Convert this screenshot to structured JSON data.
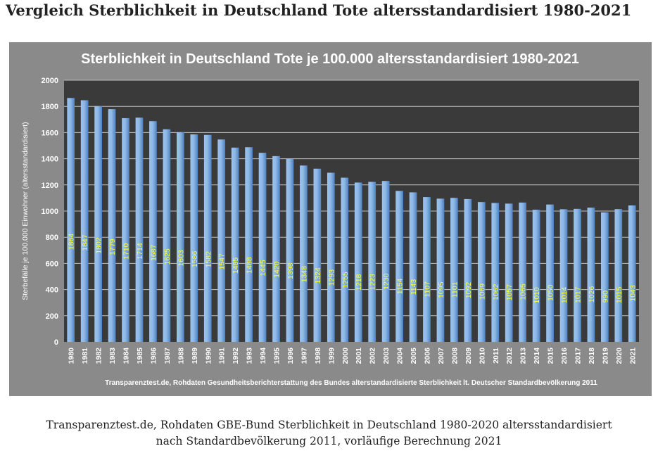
{
  "page": {
    "heading": "Vergleich Sterblichkeit in Deutschland Tote altersstandardisiert 1980-2021",
    "caption_line1": "Transparenztest.de, Rohdaten GBE-Bund Sterblichkeit in Deutschland 1980-2020 altersstandardisiert",
    "caption_line2": "nach Standardbevölkerung 2011, vorläufige Berechnung 2021"
  },
  "chart_data": {
    "type": "bar",
    "title": "Sterblichkeit in Deutschland Tote je 100.000 altersstandardisiert 1980-2021",
    "ylabel": "Sterbefälle je 100.000 Einwohner (altersstandardisiert)",
    "xlabel": "",
    "source_note": "Transparenztest.de, Rohdaten Gesundheitsberichterstattung des Bundes alterstandardisierte Sterblichkeit lt. Deutscher Standardbevölkerung 2011",
    "ylim": [
      0,
      2000
    ],
    "yticks": [
      0,
      200,
      400,
      600,
      800,
      1000,
      1200,
      1400,
      1600,
      1800,
      2000
    ],
    "grid": true,
    "categories": [
      "1980",
      "1981",
      "1982",
      "1983",
      "1984",
      "1985",
      "1986",
      "1987",
      "1988",
      "1989",
      "1990",
      "1991",
      "1992",
      "1993",
      "1994",
      "1995",
      "1996",
      "1997",
      "1998",
      "1999",
      "2000",
      "2001",
      "2002",
      "2003",
      "2004",
      "2005",
      "2006",
      "2007",
      "2008",
      "2009",
      "2010",
      "2011",
      "2012",
      "2013",
      "2014",
      "2015",
      "2016",
      "2017",
      "2018",
      "2019",
      "2020",
      "2021"
    ],
    "values": [
      1864,
      1847,
      1802,
      1779,
      1710,
      1714,
      1687,
      1625,
      1603,
      1586,
      1582,
      1547,
      1485,
      1488,
      1445,
      1420,
      1398,
      1348,
      1324,
      1293,
      1255,
      1218,
      1223,
      1230,
      1154,
      1143,
      1107,
      1095,
      1101,
      1092,
      1069,
      1062,
      1057,
      1065,
      1010,
      1050,
      1014,
      1017,
      1026,
      990,
      1015,
      1043
    ],
    "colors": {
      "frame": "#8a8a8a",
      "plot_background": "#3a3a3a",
      "gridline": "#c0c0c0",
      "bar_fill": "#8fb8e6",
      "bar_shade": "#4e82c4",
      "value_label": "#ffff33",
      "axis_text": "#ffffff"
    }
  }
}
